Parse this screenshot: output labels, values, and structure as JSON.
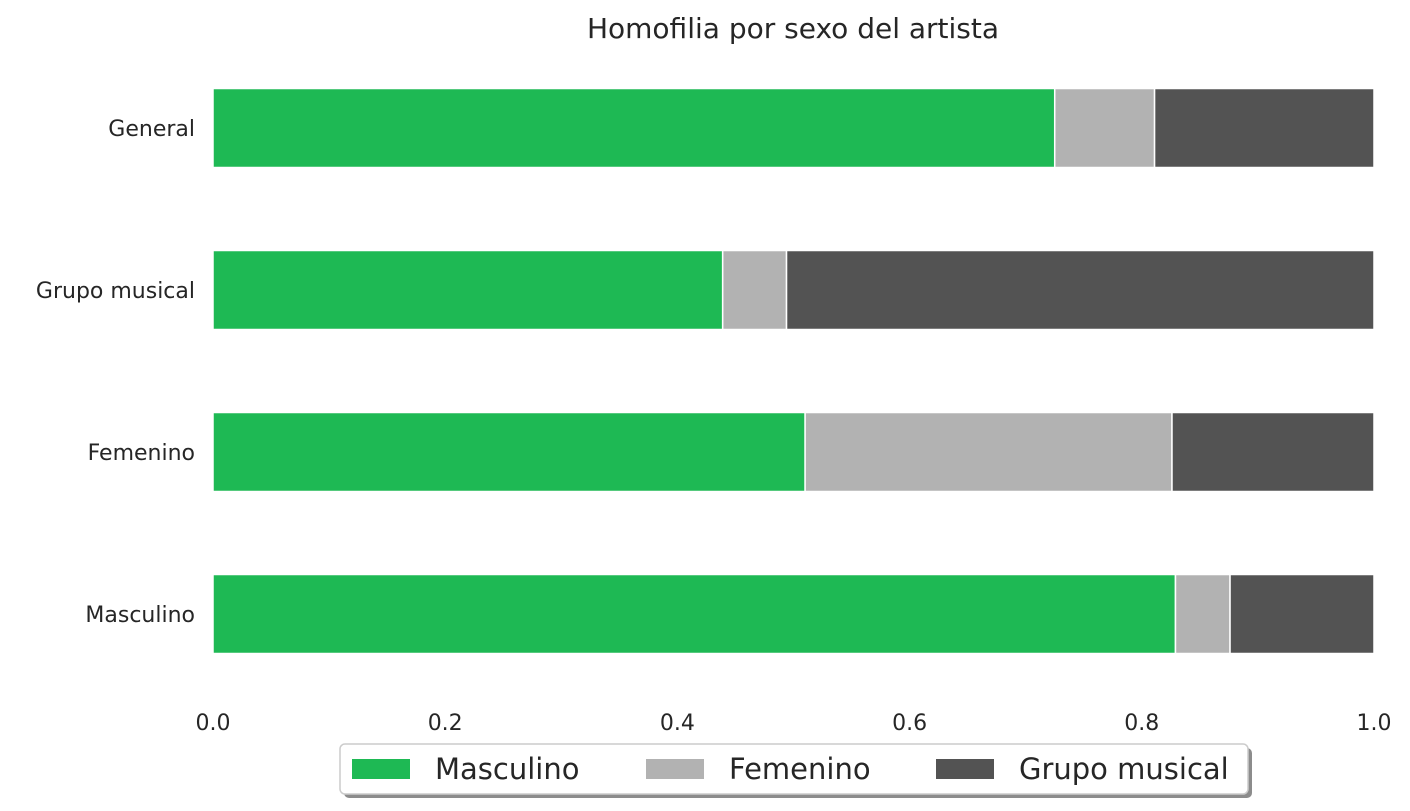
{
  "chart_data": {
    "type": "bar",
    "orientation": "horizontal",
    "stacked": true,
    "title": "Homofilia por sexo del artista",
    "xlabel": "",
    "ylabel": "",
    "categories": [
      "General",
      "Grupo musical",
      "Femenino",
      "Masculino"
    ],
    "series": [
      {
        "name": "Masculino",
        "color": "#1eb954",
        "values": [
          0.725,
          0.439,
          0.51,
          0.829
        ]
      },
      {
        "name": "Femenino",
        "color": "#b2b2b2",
        "values": [
          0.086,
          0.055,
          0.316,
          0.047
        ]
      },
      {
        "name": "Grupo musical",
        "color": "#535353",
        "values": [
          0.189,
          0.506,
          0.174,
          0.124
        ]
      }
    ],
    "xlim": [
      0.0,
      1.0
    ],
    "xticks": [
      "0.0",
      "0.2",
      "0.4",
      "0.6",
      "0.8",
      "1.0"
    ],
    "grid": false,
    "legend": "bottom-center"
  }
}
